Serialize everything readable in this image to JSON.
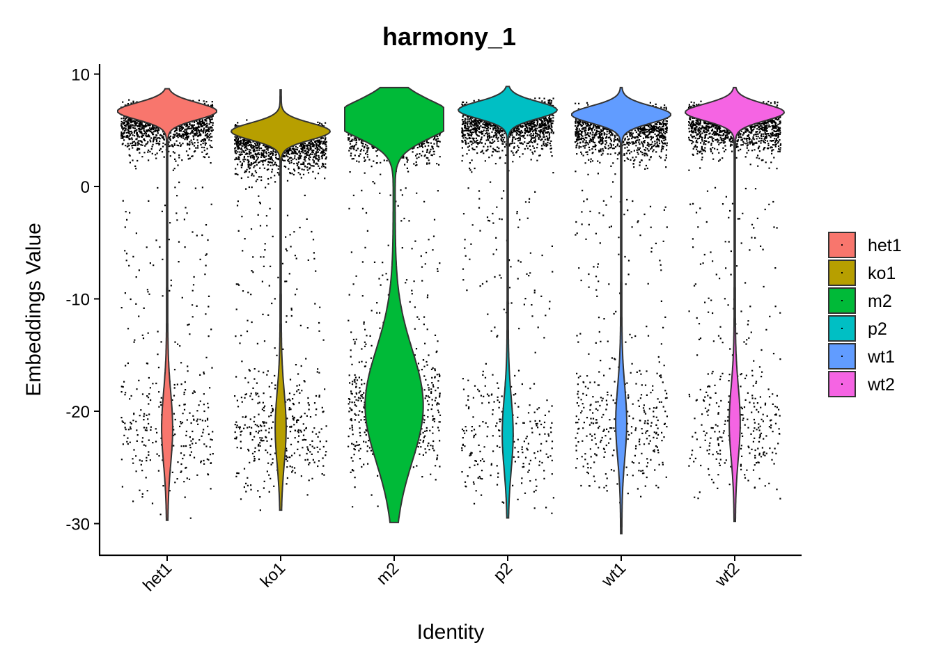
{
  "chart_data": {
    "type": "violin",
    "title": "harmony_1",
    "xlabel": "Identity",
    "ylabel": "Embeddings Value",
    "ylim": [
      -33,
      11
    ],
    "yticks": [
      10,
      0,
      -10,
      -20,
      -30
    ],
    "ytick_labels": [
      "10",
      "0",
      "-10",
      "-20",
      "-30"
    ],
    "categories": [
      "het1",
      "ko1",
      "m2",
      "p2",
      "wt1",
      "wt2"
    ],
    "legend": {
      "title": "",
      "position": "right",
      "entries": [
        "het1",
        "ko1",
        "m2",
        "p2",
        "wt1",
        "wt2"
      ]
    },
    "grid": false,
    "series": [
      {
        "name": "het1",
        "color": "#F8766D",
        "min": -29.7,
        "max": 8.7,
        "median": 6.4,
        "upper_mode": 6.7,
        "lower_mode": -21.5,
        "upper_fraction": 0.78
      },
      {
        "name": "ko1",
        "color": "#B79F00",
        "min": -28.8,
        "max": 8.6,
        "median": 4.9,
        "upper_mode": 4.9,
        "lower_mode": -21.5,
        "upper_fraction": 0.74
      },
      {
        "name": "m2",
        "color": "#00BA38",
        "min": -29.9,
        "max": 8.8,
        "median": 5.6,
        "upper_mode": 6.0,
        "lower_mode": -19.5,
        "upper_fraction": 0.6
      },
      {
        "name": "p2",
        "color": "#00BFC4",
        "min": -29.5,
        "max": 8.9,
        "median": 6.4,
        "upper_mode": 6.8,
        "lower_mode": -22.0,
        "upper_fraction": 0.82
      },
      {
        "name": "wt1",
        "color": "#619CFF",
        "min": -30.9,
        "max": 8.8,
        "median": 6.1,
        "upper_mode": 6.4,
        "lower_mode": -21.0,
        "upper_fraction": 0.76
      },
      {
        "name": "wt2",
        "color": "#F564E3",
        "min": -29.8,
        "max": 8.8,
        "median": 6.4,
        "upper_mode": 6.6,
        "lower_mode": -21.0,
        "upper_fraction": 0.78
      }
    ]
  }
}
